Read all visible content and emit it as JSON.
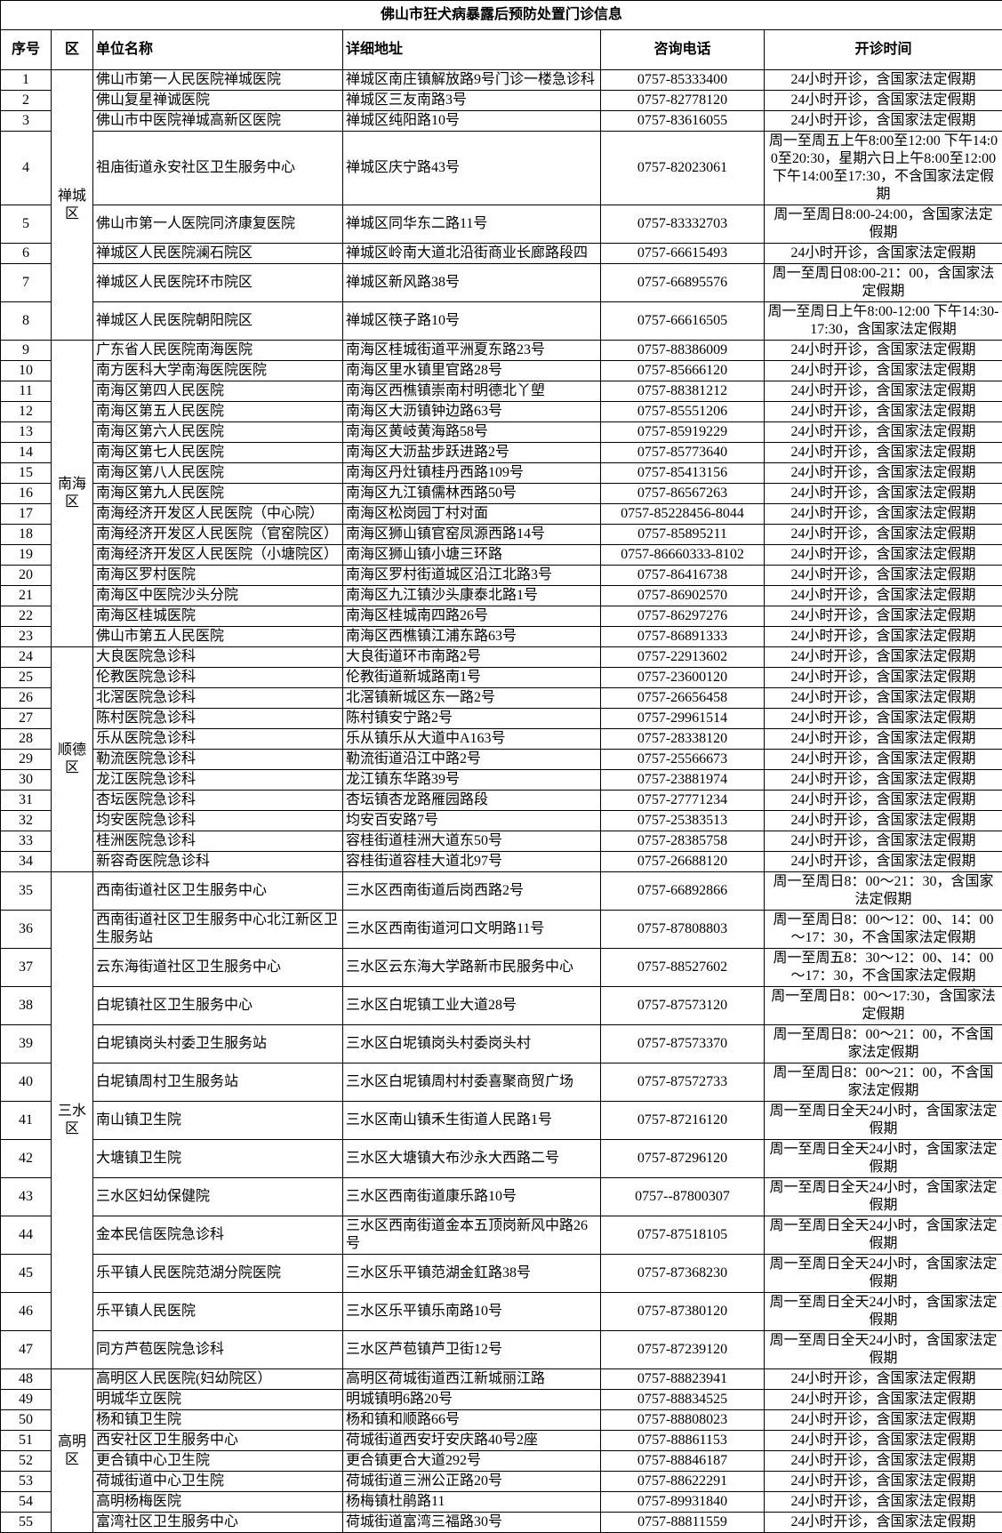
{
  "title": "佛山市狂犬病暴露后预防处置门诊信息",
  "colors": {
    "border": "#000000",
    "text": "#000000",
    "background": "#ffffff"
  },
  "table": {
    "headers": [
      "序号",
      "区",
      "单位名称",
      "详细地址",
      "咨询电话",
      "开诊时间"
    ],
    "districts": [
      {
        "name": "禅城区",
        "rows": [
          {
            "no": "1",
            "name": "佛山市第一人民医院禅城医院",
            "address": "禅城区南庄镇解放路9号门诊一楼急诊科",
            "phone": "0757-85333400",
            "hours": "24小时开诊，含国家法定假期"
          },
          {
            "no": "2",
            "name": "佛山复星禅诚医院",
            "address": "禅城区三友南路3号",
            "phone": "0757-82778120",
            "hours": "24小时开诊，含国家法定假期"
          },
          {
            "no": "3",
            "name": "佛山市中医院禅城高新区医院",
            "address": "禅城区纯阳路10号",
            "phone": "0757-83616055",
            "hours": "24小时开诊，含国家法定假期"
          },
          {
            "no": "4",
            "name": "祖庙街道永安社区卫生服务中心",
            "address": "禅城区庆宁路43号",
            "phone": "0757-82023061",
            "hours": "周一至周五上午8:00至12:00 下午14:00至20:30，星期六日上午8:00至12:00 下午14:00至17:30，不含国家法定假期"
          },
          {
            "no": "5",
            "name": "佛山市第一人医院同济康复医院",
            "address": "禅城区同华东二路11号",
            "phone": "0757-83332703",
            "hours": "周一至周日8:00-24:00，含国家法定假期"
          },
          {
            "no": "6",
            "name": "禅城区人民医院澜石院区",
            "address": "禅城区岭南大道北沿街商业长廊路段四",
            "phone": "0757-66615493",
            "hours": "24小时开诊，含国家法定假期"
          },
          {
            "no": "7",
            "name": "禅城区人民医院环市院区",
            "address": "禅城区新风路38号",
            "phone": "0757-66895576",
            "hours": "周一至周日08:00-21：00，含国家法定假期"
          },
          {
            "no": "8",
            "name": "禅城区人民医院朝阳院区",
            "address": "禅城区筷子路10号",
            "phone": "0757-66616505",
            "hours": "周一至周日上午8:00-12:00 下午14:30-17:30，含国家法定假期"
          }
        ]
      },
      {
        "name": "南海区",
        "rows": [
          {
            "no": "9",
            "name": "广东省人民医院南海医院",
            "address": "南海区桂城街道平洲夏东路23号",
            "phone": "0757-88386009",
            "hours": "24小时开诊，含国家法定假期"
          },
          {
            "no": "10",
            "name": "南方医科大学南海医院医院",
            "address": "南海区里水镇里官路28号",
            "phone": "0757-85666120",
            "hours": "24小时开诊，含国家法定假期"
          },
          {
            "no": "11",
            "name": "南海区第四人民医院",
            "address": "南海区西樵镇崇南村明德北丫塱",
            "phone": "0757-88381212",
            "hours": "24小时开诊，含国家法定假期"
          },
          {
            "no": "12",
            "name": "南海区第五人民医院",
            "address": "南海区大沥镇钟边路63号",
            "phone": "0757-85551206",
            "hours": "24小时开诊，含国家法定假期"
          },
          {
            "no": "13",
            "name": "南海区第六人民医院",
            "address": "南海区黄岐黄海路58号",
            "phone": "0757-85919229",
            "hours": "24小时开诊，含国家法定假期"
          },
          {
            "no": "14",
            "name": "南海区第七人民医院",
            "address": "南海区大沥盐步跃进路2号",
            "phone": "0757-85773640",
            "hours": "24小时开诊，含国家法定假期"
          },
          {
            "no": "15",
            "name": "南海区第八人民医院",
            "address": "南海区丹灶镇桂丹西路109号",
            "phone": "0757-85413156",
            "hours": "24小时开诊，含国家法定假期"
          },
          {
            "no": "16",
            "name": "南海区第九人民医院",
            "address": "南海区九江镇儒林西路50号",
            "phone": "0757-86567263",
            "hours": "24小时开诊，含国家法定假期"
          },
          {
            "no": "17",
            "name": "南海经济开发区人民医院（中心院）",
            "address": "南海区松岗园丁村对面",
            "phone": "0757-85228456-8044",
            "hours": "24小时开诊，含国家法定假期"
          },
          {
            "no": "18",
            "name": "南海经济开发区人民医院（官窑院区）",
            "address": "南海区狮山镇官窑凤源西路14号",
            "phone": "0757-85895211",
            "hours": "24小时开诊，含国家法定假期"
          },
          {
            "no": "19",
            "name": "南海经济开发区人民医院（小塘院区）",
            "address": "南海区狮山镇小塘三环路",
            "phone": "0757-86660333-8102",
            "hours": "24小时开诊，含国家法定假期"
          },
          {
            "no": "20",
            "name": "南海区罗村医院",
            "address": "南海区罗村街道城区沿江北路3号",
            "phone": "0757-86416738",
            "hours": "24小时开诊，含国家法定假期"
          },
          {
            "no": "21",
            "name": "南海区中医院沙头分院",
            "address": "南海区九江镇沙头康泰北路1号",
            "phone": "0757-86902570",
            "hours": "24小时开诊，含国家法定假期"
          },
          {
            "no": "22",
            "name": "南海区桂城医院",
            "address": "南海区桂城南四路26号",
            "phone": "0757-86297276",
            "hours": "24小时开诊，含国家法定假期"
          },
          {
            "no": "23",
            "name": "佛山市第五人民医院",
            "address": "南海区西樵镇江浦东路63号",
            "phone": "0757-86891333",
            "hours": "24小时开诊，含国家法定假期"
          }
        ]
      },
      {
        "name": "顺德区",
        "rows": [
          {
            "no": "24",
            "name": "大良医院急诊科",
            "address": "大良街道环市南路2号",
            "phone": "0757-22913602",
            "hours": "24小时开诊，含国家法定假期"
          },
          {
            "no": "25",
            "name": "伦教医院急诊科",
            "address": "伦教街道新城路南1号",
            "phone": "0757-23600120",
            "hours": "24小时开诊，含国家法定假期"
          },
          {
            "no": "26",
            "name": "北滘医院急诊科",
            "address": "北滘镇新城区东一路2号",
            "phone": "0757-26656458",
            "hours": "24小时开诊，含国家法定假期"
          },
          {
            "no": "27",
            "name": "陈村医院急诊科",
            "address": "陈村镇安宁路2号",
            "phone": "0757-29961514",
            "hours": "24小时开诊，含国家法定假期"
          },
          {
            "no": "28",
            "name": "乐从医院急诊科",
            "address": "乐从镇乐从大道中A163号",
            "phone": "0757-28338120",
            "hours": "24小时开诊，含国家法定假期"
          },
          {
            "no": "29",
            "name": "勒流医院急诊科",
            "address": "勒流街道沿江中路2号",
            "phone": "0757-25566673",
            "hours": "24小时开诊，含国家法定假期"
          },
          {
            "no": "30",
            "name": "龙江医院急诊科",
            "address": "龙江镇东华路39号",
            "phone": "0757-23881974",
            "hours": "24小时开诊，含国家法定假期"
          },
          {
            "no": "31",
            "name": "杏坛医院急诊科",
            "address": "杏坛镇杏龙路雁园路段",
            "phone": "0757-27771234",
            "hours": "24小时开诊，含国家法定假期"
          },
          {
            "no": "32",
            "name": "均安医院急诊科",
            "address": "均安百安路7号",
            "phone": "0757-25383513",
            "hours": "24小时开诊，含国家法定假期"
          },
          {
            "no": "33",
            "name": "桂洲医院急诊科",
            "address": "容桂街道桂洲大道东50号",
            "phone": "0757-28385758",
            "hours": "24小时开诊，含国家法定假期"
          },
          {
            "no": "34",
            "name": "新容奇医院急诊科",
            "address": "容桂街道容桂大道北97号",
            "phone": "0757-26688120",
            "hours": "24小时开诊，含国家法定假期"
          }
        ]
      },
      {
        "name": "三水区",
        "rows": [
          {
            "no": "35",
            "name": "西南街道社区卫生服务中心",
            "address": "三水区西南街道后岗西路2号",
            "phone": "0757-66892866",
            "hours": "周一至周日8：00～21：30，含国家法定假期"
          },
          {
            "no": "36",
            "name": "西南街道社区卫生服务中心北江新区卫生服务站",
            "address": "三水区西南街道河口文明路11号",
            "phone": "0757-87808803",
            "hours": "周一至周日8：00～12：00、14：00～17：30，不含国家法定假期"
          },
          {
            "no": "37",
            "name": "云东海街道社区卫生服务中心",
            "address": "三水区云东海大学路新市民服务中心",
            "phone": "0757-88527602",
            "hours": "周一至周五8：30～12：00、14：00～17：30，不含国家法定假期"
          },
          {
            "no": "38",
            "name": "白坭镇社区卫生服务中心",
            "address": "三水区白坭镇工业大道28号",
            "phone": "0757-87573120",
            "hours": "周一至周日8：00～17:30，含国家法定假期"
          },
          {
            "no": "39",
            "name": "白坭镇岗头村委卫生服务站",
            "address": "三水区白坭镇岗头村委岗头村",
            "phone": "0757-87573370",
            "hours": "周一至周日8：00～21：00，不含国家法定假期"
          },
          {
            "no": "40",
            "name": "白坭镇周村卫生服务站",
            "address": "三水区白坭镇周村村委喜聚商贸广场",
            "phone": "0757-87572733",
            "hours": "周一至周日8：00～21：00，不含国家法定假期"
          },
          {
            "no": "41",
            "name": "南山镇卫生院",
            "address": "三水区南山镇禾生街道人民路1号",
            "phone": "0757-87216120",
            "hours": "周一至周日全天24小时，含国家法定假期"
          },
          {
            "no": "42",
            "name": "大塘镇卫生院",
            "address": "三水区大塘镇大布沙永大西路二号",
            "phone": "0757-87296120",
            "hours": "周一至周日全天24小时，含国家法定假期"
          },
          {
            "no": "43",
            "name": "三水区妇幼保健院",
            "address": "三水区西南街道康乐路10号",
            "phone": "0757--87800307",
            "hours": "周一至周日全天24小时，含国家法定假期"
          },
          {
            "no": "44",
            "name": "金本民信医院急诊科",
            "address": "三水区西南街道金本五顶岗新风中路26号",
            "phone": "0757-87518105",
            "hours": "周一至周日全天24小时，含国家法定假期"
          },
          {
            "no": "45",
            "name": "乐平镇人民医院范湖分院医院",
            "address": "三水区乐平镇范湖金釭路38号",
            "phone": "0757-87368230",
            "hours": "周一至周日全天24小时，含国家法定假期"
          },
          {
            "no": "46",
            "name": "乐平镇人民医院",
            "address": "三水区乐平镇乐南路10号",
            "phone": "0757-87380120",
            "hours": "周一至周日全天24小时，含国家法定假期"
          },
          {
            "no": "47",
            "name": "同方芦苞医院急诊科",
            "address": "三水区芦苞镇芦卫街12号",
            "phone": "0757-87239120",
            "hours": "周一至周日全天24小时，含国家法定假期"
          }
        ]
      },
      {
        "name": "高明区",
        "rows": [
          {
            "no": "48",
            "name": "高明区人民医院(妇幼院区）",
            "address": "高明区荷城街道西江新城丽江路",
            "phone": "0757-88823941",
            "hours": "24小时开诊，含国家法定假期"
          },
          {
            "no": "49",
            "name": "明城华立医院",
            "address": "明城镇明6路20号",
            "phone": "0757-88834525",
            "hours": "24小时开诊，含国家法定假期"
          },
          {
            "no": "50",
            "name": "杨和镇卫生院",
            "address": "杨和镇和顺路66号",
            "phone": "0757-88808023",
            "hours": "24小时开诊，含国家法定假期"
          },
          {
            "no": "51",
            "name": "西安社区卫生服务中心",
            "address": "荷城街道西安圩安庆路40号2座",
            "phone": "0757-88861153",
            "hours": "24小时开诊，含国家法定假期"
          },
          {
            "no": "52",
            "name": "更合镇中心卫生院",
            "address": "更合镇更合大道292号",
            "phone": "0757-88846187",
            "hours": "24小时开诊，含国家法定假期"
          },
          {
            "no": "53",
            "name": "荷城街道中心卫生院",
            "address": "荷城街道三洲公正路20号",
            "phone": "0757-88622291",
            "hours": "24小时开诊，含国家法定假期"
          },
          {
            "no": "54",
            "name": "高明杨梅医院",
            "address": "杨梅镇杜鹃路11",
            "phone": "0757-89931840",
            "hours": "24小时开诊，含国家法定假期"
          },
          {
            "no": "55",
            "name": "富湾社区卫生服务中心",
            "address": "荷城街道富湾三福路30号",
            "phone": "0757-88811559",
            "hours": "24小时开诊，含国家法定假期"
          }
        ]
      }
    ]
  }
}
